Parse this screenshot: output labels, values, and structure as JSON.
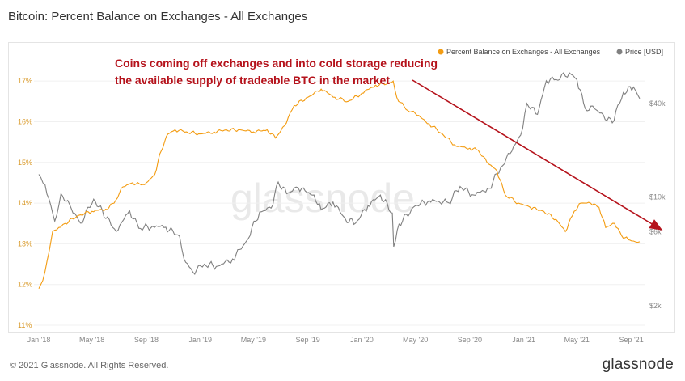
{
  "header": {
    "title": "Bitcoin: Percent Balance on Exchanges - All Exchanges"
  },
  "footer": {
    "copyright": "© 2021 Glassnode. All Rights Reserved.",
    "brand": "glassnode"
  },
  "watermark": "glassnode",
  "colors": {
    "balance": "#f39c12",
    "price": "#808080",
    "annotation": "#b5121b",
    "arrow": "#b5121b"
  },
  "chart_data": {
    "type": "line",
    "title": "Bitcoin: Percent Balance on Exchanges - All Exchanges",
    "x_ticks": [
      "Jan '18",
      "May '18",
      "Sep '18",
      "Jan '19",
      "May '19",
      "Sep '19",
      "Jan '20",
      "May '20",
      "Sep '20",
      "Jan '21",
      "May '21",
      "Sep '21"
    ],
    "x_range": [
      "2018-01-01",
      "2021-10-01"
    ],
    "y_left": {
      "label": "",
      "ticks": [
        "11%",
        "12%",
        "13%",
        "14%",
        "15%",
        "16%",
        "17%"
      ],
      "range": [
        11,
        17.6
      ]
    },
    "y_right": {
      "label": "",
      "scale": "log",
      "ticks": [
        "$2k",
        "$6k",
        "$10k",
        "$40k"
      ],
      "tick_values": [
        2000,
        6000,
        10000,
        40000
      ]
    },
    "legend": {
      "position": "top-right",
      "items": [
        {
          "name": "Percent Balance on Exchanges - All Exchanges",
          "color": "#f39c12"
        },
        {
          "name": "Price [USD]",
          "color": "#808080"
        }
      ]
    },
    "annotation": {
      "lines": [
        "Coins coming off exchanges and into cold storage reducing",
        "the available supply of tradeable BTC in the market"
      ]
    },
    "series": [
      {
        "name": "Percent Balance on Exchanges - All Exchanges",
        "axis": "left",
        "points": [
          [
            "2018-01-01",
            11.9
          ],
          [
            "2018-01-10",
            12.1
          ],
          [
            "2018-01-20",
            12.6
          ],
          [
            "2018-02-01",
            13.3
          ],
          [
            "2018-02-15",
            13.4
          ],
          [
            "2018-03-01",
            13.5
          ],
          [
            "2018-04-01",
            13.7
          ],
          [
            "2018-05-01",
            13.8
          ],
          [
            "2018-06-01",
            13.85
          ],
          [
            "2018-06-20",
            14.0
          ],
          [
            "2018-07-10",
            14.4
          ],
          [
            "2018-08-01",
            14.5
          ],
          [
            "2018-08-20",
            14.45
          ],
          [
            "2018-09-01",
            14.5
          ],
          [
            "2018-09-20",
            14.7
          ],
          [
            "2018-10-01",
            15.2
          ],
          [
            "2018-10-20",
            15.7
          ],
          [
            "2018-11-05",
            15.8
          ],
          [
            "2018-12-01",
            15.75
          ],
          [
            "2019-01-01",
            15.7
          ],
          [
            "2019-02-01",
            15.75
          ],
          [
            "2019-03-01",
            15.8
          ],
          [
            "2019-04-01",
            15.8
          ],
          [
            "2019-05-01",
            15.75
          ],
          [
            "2019-06-01",
            15.8
          ],
          [
            "2019-06-20",
            15.6
          ],
          [
            "2019-07-10",
            15.9
          ],
          [
            "2019-08-01",
            16.4
          ],
          [
            "2019-09-01",
            16.6
          ],
          [
            "2019-10-01",
            16.8
          ],
          [
            "2019-11-01",
            16.6
          ],
          [
            "2019-12-01",
            16.5
          ],
          [
            "2020-01-01",
            16.7
          ],
          [
            "2020-02-01",
            16.9
          ],
          [
            "2020-03-01",
            16.95
          ],
          [
            "2020-03-12",
            17.0
          ],
          [
            "2020-03-20",
            16.6
          ],
          [
            "2020-04-10",
            16.3
          ],
          [
            "2020-05-01",
            16.2
          ],
          [
            "2020-06-01",
            15.95
          ],
          [
            "2020-07-01",
            15.7
          ],
          [
            "2020-08-01",
            15.4
          ],
          [
            "2020-09-01",
            15.35
          ],
          [
            "2020-09-20",
            15.3
          ],
          [
            "2020-10-10",
            15.0
          ],
          [
            "2020-11-01",
            14.8
          ],
          [
            "2020-11-20",
            14.2
          ],
          [
            "2020-12-20",
            14.0
          ],
          [
            "2021-01-15",
            13.9
          ],
          [
            "2021-02-15",
            13.8
          ],
          [
            "2021-03-15",
            13.6
          ],
          [
            "2021-04-05",
            13.3
          ],
          [
            "2021-04-25",
            13.8
          ],
          [
            "2021-05-10",
            14.0
          ],
          [
            "2021-06-01",
            14.0
          ],
          [
            "2021-06-20",
            13.9
          ],
          [
            "2021-07-05",
            13.4
          ],
          [
            "2021-07-25",
            13.5
          ],
          [
            "2021-08-10",
            13.2
          ],
          [
            "2021-08-25",
            13.1
          ],
          [
            "2021-09-10",
            13.05
          ],
          [
            "2021-09-20",
            13.05
          ]
        ]
      },
      {
        "name": "Price [USD]",
        "axis": "right",
        "points": [
          [
            "2018-01-01",
            14000
          ],
          [
            "2018-01-15",
            12000
          ],
          [
            "2018-02-06",
            7000
          ],
          [
            "2018-02-20",
            10500
          ],
          [
            "2018-03-15",
            8500
          ],
          [
            "2018-04-05",
            6800
          ],
          [
            "2018-05-05",
            9700
          ],
          [
            "2018-06-25",
            6000
          ],
          [
            "2018-07-25",
            8200
          ],
          [
            "2018-08-15",
            6300
          ],
          [
            "2018-09-15",
            6500
          ],
          [
            "2018-10-15",
            6400
          ],
          [
            "2018-11-15",
            5600
          ],
          [
            "2018-11-25",
            4000
          ],
          [
            "2018-12-15",
            3300
          ],
          [
            "2019-01-10",
            3700
          ],
          [
            "2019-02-10",
            3600
          ],
          [
            "2019-03-15",
            4000
          ],
          [
            "2019-04-15",
            5200
          ],
          [
            "2019-05-15",
            8000
          ],
          [
            "2019-06-10",
            8500
          ],
          [
            "2019-06-26",
            12500
          ],
          [
            "2019-07-15",
            10500
          ],
          [
            "2019-08-10",
            11500
          ],
          [
            "2019-09-15",
            10300
          ],
          [
            "2019-10-01",
            8300
          ],
          [
            "2019-10-28",
            9300
          ],
          [
            "2019-11-25",
            7200
          ],
          [
            "2019-12-18",
            6800
          ],
          [
            "2020-01-15",
            8800
          ],
          [
            "2020-02-12",
            10300
          ],
          [
            "2020-03-10",
            7900
          ],
          [
            "2020-03-13",
            4800
          ],
          [
            "2020-03-25",
            6700
          ],
          [
            "2020-05-01",
            8800
          ],
          [
            "2020-06-01",
            9500
          ],
          [
            "2020-07-15",
            9200
          ],
          [
            "2020-08-10",
            11700
          ],
          [
            "2020-09-10",
            10300
          ],
          [
            "2020-10-15",
            11400
          ],
          [
            "2020-11-10",
            15500
          ],
          [
            "2020-12-01",
            19000
          ],
          [
            "2020-12-25",
            25000
          ],
          [
            "2021-01-08",
            40000
          ],
          [
            "2021-02-01",
            34000
          ],
          [
            "2021-02-21",
            56000
          ],
          [
            "2021-03-15",
            57000
          ],
          [
            "2021-04-14",
            63000
          ],
          [
            "2021-05-01",
            57000
          ],
          [
            "2021-05-20",
            37000
          ],
          [
            "2021-06-10",
            37000
          ],
          [
            "2021-07-20",
            30000
          ],
          [
            "2021-08-14",
            47000
          ],
          [
            "2021-09-06",
            51000
          ],
          [
            "2021-09-20",
            43000
          ]
        ]
      }
    ]
  }
}
